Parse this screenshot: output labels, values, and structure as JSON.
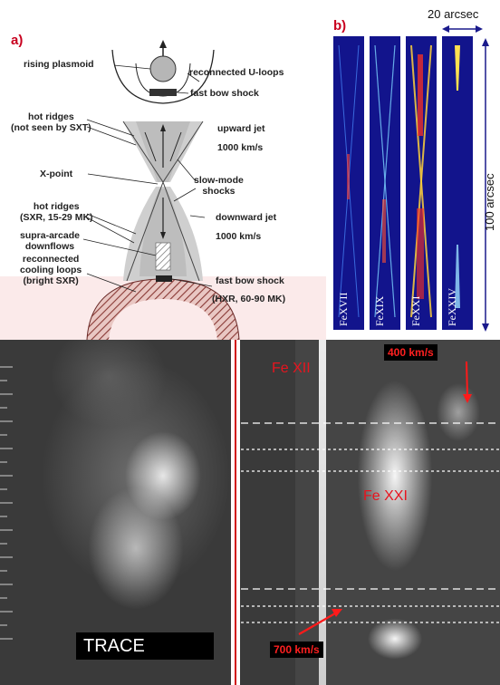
{
  "panel_a": {
    "letter": "a)",
    "labels": {
      "rising_plasmoid": "rising plasmoid",
      "reconnected_u_loops": "reconnected U-loops",
      "fast_bow_shock_top": "fast bow shock",
      "hot_ridges_sxt_1": "hot ridges",
      "hot_ridges_sxt_2": "(not seen by SXT)",
      "upward_jet": "upward jet",
      "upward_jet_speed": "1000 km/s",
      "x_point": "X-point",
      "slow_mode_1": "slow-mode",
      "slow_mode_2": "shocks",
      "hot_ridges_sxr_1": "hot ridges",
      "hot_ridges_sxr_2": "(SXR, 15-29 MK)",
      "supra_arcade_1": "supra-arcade",
      "supra_arcade_2": "downflows",
      "downward_jet": "downward jet",
      "downward_jet_speed": "1000 km/s",
      "reconnected_cooling_1": "reconnected",
      "reconnected_cooling_2": "cooling loops",
      "reconnected_cooling_3": "(bright SXR)",
      "fast_bow_shock_bottom": "fast bow shock",
      "hxr": "(HXR, 60-90 MK)"
    }
  },
  "panel_b": {
    "letter": "b)",
    "scale_top": "20 arcsec",
    "scale_side": "100 arcsec",
    "strips": [
      "FeXVII",
      "FeXIX",
      "FeXXI",
      "FeXXIV"
    ]
  },
  "panel_c": {
    "trace_label": "TRACE",
    "fe_xii": "Fe XII",
    "fe_xxi": "Fe XXI",
    "speed_top": "400 km/s",
    "speed_bottom": "700 km/s"
  },
  "colors": {
    "accent_red": "#c8001e",
    "strip_bg": "#12148c",
    "text_red": "#e8141e"
  }
}
